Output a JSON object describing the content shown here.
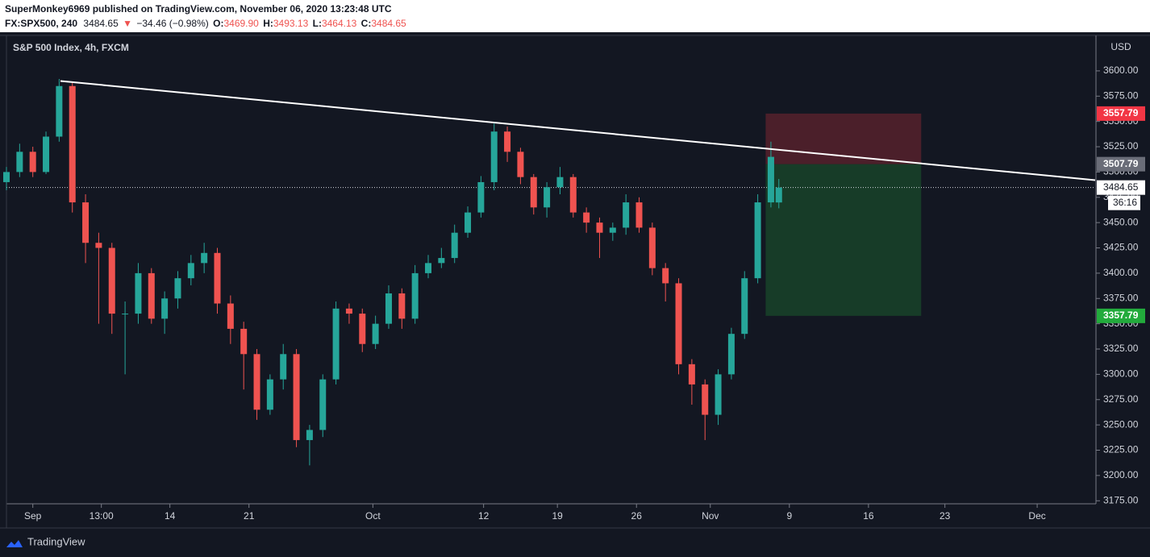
{
  "header": {
    "author_line": "SuperMonkey6969 published on TradingView.com, November 06, 2020 13:23:48 UTC",
    "symbol": "FX:SPX500, 240",
    "last": "3484.65",
    "arrow": "▼",
    "change": "−34.46 (−0.98%)",
    "ohlc": [
      {
        "key": "O:",
        "value": "3469.90"
      },
      {
        "key": "H:",
        "value": "3493.13"
      },
      {
        "key": "L:",
        "value": "3464.13"
      },
      {
        "key": "C:",
        "value": "3484.65"
      }
    ]
  },
  "footer": {
    "brand": "TradingView"
  },
  "chart_data": {
    "type": "candlestick",
    "title": "S&P 500 Index, 4h, FXCM",
    "currency": "USD",
    "up_color": "#26a69a",
    "down_color": "#ef5350",
    "xlim": [
      0,
      413
    ],
    "xticks": [
      {
        "value": 10,
        "label": "Sep"
      },
      {
        "value": 36,
        "label": "13:00"
      },
      {
        "value": 62,
        "label": "14"
      },
      {
        "value": 92,
        "label": "21"
      },
      {
        "value": 139,
        "label": "Oct"
      },
      {
        "value": 181,
        "label": "12"
      },
      {
        "value": 209,
        "label": "19"
      },
      {
        "value": 239,
        "label": "26"
      },
      {
        "value": 267,
        "label": "Nov"
      },
      {
        "value": 297,
        "label": "9"
      },
      {
        "value": 327,
        "label": "16"
      },
      {
        "value": 356,
        "label": "23"
      },
      {
        "value": 391,
        "label": "Dec"
      }
    ],
    "ylim": [
      3172,
      3635
    ],
    "yticks": [
      {
        "value": 3175,
        "label": "3175.00"
      },
      {
        "value": 3200,
        "label": "3200.00"
      },
      {
        "value": 3225,
        "label": "3225.00"
      },
      {
        "value": 3250,
        "label": "3250.00"
      },
      {
        "value": 3275,
        "label": "3275.00"
      },
      {
        "value": 3300,
        "label": "3300.00"
      },
      {
        "value": 3325,
        "label": "3325.00"
      },
      {
        "value": 3350,
        "label": "3350.00"
      },
      {
        "value": 3375,
        "label": "3375.00"
      },
      {
        "value": 3400,
        "label": "3400.00"
      },
      {
        "value": 3425,
        "label": "3425.00"
      },
      {
        "value": 3450,
        "label": "3450.00"
      },
      {
        "value": 3475,
        "label": "3475.00"
      },
      {
        "value": 3500,
        "label": "3500.00"
      },
      {
        "value": 3525,
        "label": "3525.00"
      },
      {
        "value": 3550,
        "label": "3550.00"
      },
      {
        "value": 3575,
        "label": "3575.00"
      },
      {
        "value": 3600,
        "label": "3600.00"
      }
    ],
    "x": [
      0,
      5,
      10,
      15,
      20,
      25,
      30,
      35,
      40,
      45,
      50,
      55,
      60,
      65,
      70,
      75,
      80,
      85,
      90,
      95,
      100,
      105,
      110,
      115,
      120,
      125,
      130,
      135,
      140,
      145,
      150,
      155,
      160,
      165,
      170,
      175,
      180,
      185,
      190,
      195,
      200,
      205,
      210,
      215,
      220,
      225,
      230,
      235,
      240,
      245,
      250,
      255,
      260,
      265,
      270,
      275,
      280,
      285,
      290,
      293
    ],
    "open": [
      3490,
      3500,
      3520,
      3500,
      3535,
      3585,
      3470,
      3430,
      3425,
      3360,
      3360,
      3400,
      3355,
      3375,
      3395,
      3410,
      3420,
      3370,
      3345,
      3320,
      3265,
      3295,
      3320,
      3235,
      3245,
      3295,
      3365,
      3360,
      3330,
      3350,
      3380,
      3355,
      3400,
      3410,
      3415,
      3440,
      3460,
      3490,
      3540,
      3520,
      3495,
      3465,
      3485,
      3495,
      3460,
      3450,
      3440,
      3445,
      3470,
      3445,
      3405,
      3390,
      3310,
      3290,
      3260,
      3300,
      3340,
      3395,
      3470,
      3469.9
    ],
    "high": [
      3505,
      3528,
      3525,
      3540,
      3592,
      3588,
      3478,
      3440,
      3430,
      3372,
      3410,
      3405,
      3382,
      3402,
      3418,
      3430,
      3425,
      3378,
      3352,
      3325,
      3300,
      3330,
      3325,
      3250,
      3300,
      3372,
      3370,
      3365,
      3358,
      3388,
      3385,
      3408,
      3418,
      3425,
      3448,
      3466,
      3496,
      3548,
      3545,
      3524,
      3498,
      3490,
      3505,
      3498,
      3465,
      3455,
      3450,
      3478,
      3475,
      3450,
      3410,
      3395,
      3315,
      3295,
      3305,
      3346,
      3402,
      3478,
      3530,
      3493.13
    ],
    "low": [
      3482,
      3495,
      3495,
      3498,
      3530,
      3460,
      3410,
      3350,
      3340,
      3300,
      3350,
      3350,
      3340,
      3365,
      3388,
      3400,
      3360,
      3330,
      3285,
      3255,
      3260,
      3285,
      3228,
      3210,
      3238,
      3290,
      3350,
      3322,
      3325,
      3345,
      3345,
      3350,
      3395,
      3405,
      3410,
      3435,
      3455,
      3482,
      3510,
      3488,
      3458,
      3455,
      3478,
      3455,
      3440,
      3415,
      3432,
      3438,
      3440,
      3398,
      3372,
      3300,
      3270,
      3235,
      3250,
      3295,
      3335,
      3390,
      3465,
      3464.13
    ],
    "close": [
      3500,
      3520,
      3500,
      3535,
      3585,
      3470,
      3430,
      3425,
      3360,
      3360,
      3400,
      3355,
      3375,
      3395,
      3410,
      3420,
      3370,
      3345,
      3320,
      3265,
      3295,
      3320,
      3235,
      3245,
      3295,
      3365,
      3360,
      3330,
      3350,
      3380,
      3355,
      3400,
      3410,
      3415,
      3440,
      3460,
      3490,
      3540,
      3520,
      3495,
      3465,
      3485,
      3495,
      3460,
      3450,
      3440,
      3445,
      3470,
      3445,
      3405,
      3390,
      3310,
      3290,
      3260,
      3300,
      3340,
      3395,
      3470,
      3515,
      3484.65
    ],
    "trendline": {
      "x": [
        20.5,
        413
      ],
      "y": [
        3590,
        3492
      ],
      "color": "#ffffff"
    },
    "position": {
      "x_start": 288,
      "x_end": 347,
      "stop": 3557.79,
      "entry": 3507.79,
      "target": 3357.79
    },
    "last_price": 3484.65,
    "price_labels": [
      {
        "value": 3557.79,
        "label": "3557.79",
        "color": "#f23645"
      },
      {
        "value": 3507.79,
        "label": "3507.79",
        "color": "#6a6d78"
      },
      {
        "value": 3484.65,
        "label": "3484.65",
        "color": "#ffffff"
      },
      {
        "value": 3357.79,
        "label": "3357.79",
        "color": "#22ab3c"
      }
    ],
    "countdown": "36:16"
  }
}
